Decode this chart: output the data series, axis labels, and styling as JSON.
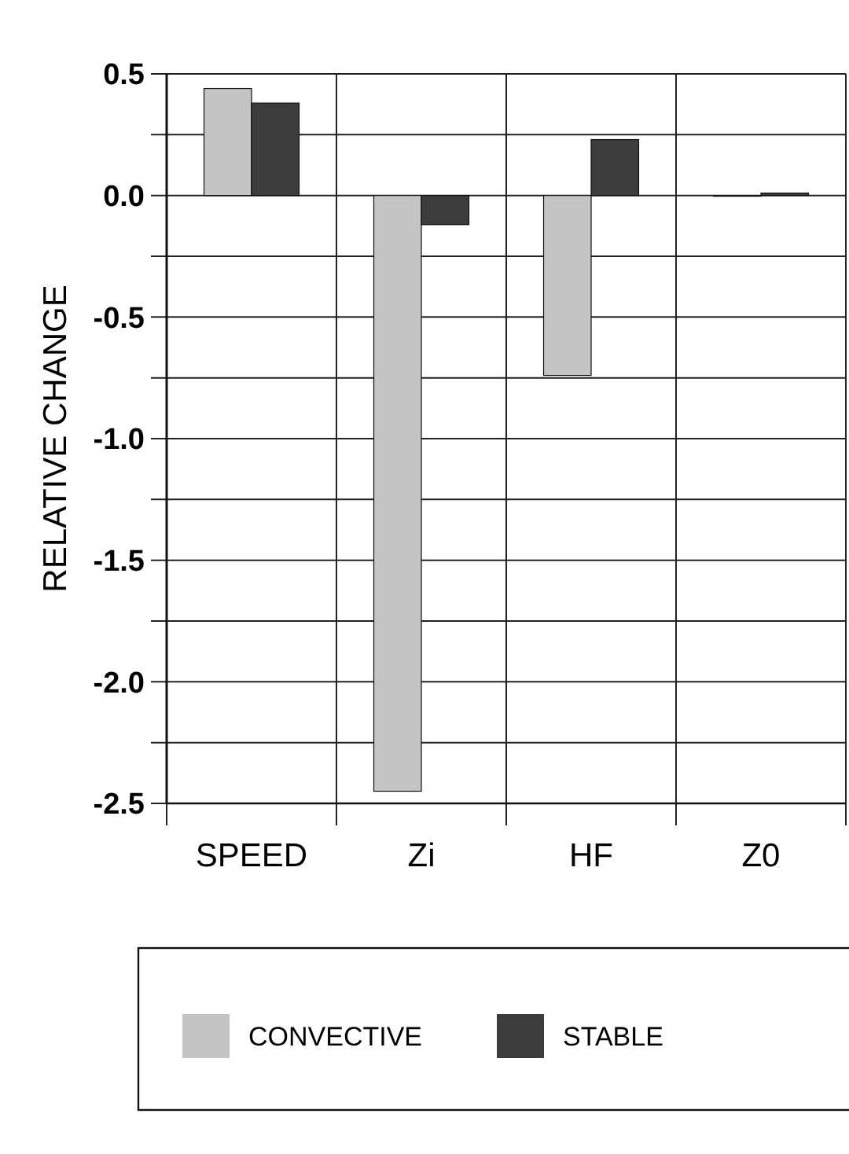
{
  "chart_data": {
    "type": "bar",
    "ylabel": "RELATIVE CHANGE",
    "categories": [
      "SPEED",
      "Zi",
      "HF",
      "Z0"
    ],
    "series": [
      {
        "name": "CONVECTIVE",
        "color": "#c4c4c4",
        "values": [
          0.44,
          -2.45,
          -0.74,
          0.0
        ]
      },
      {
        "name": "STABLE",
        "color": "#3c3c3c",
        "values": [
          0.38,
          -0.12,
          0.23,
          0.01
        ]
      }
    ],
    "ylim": [
      -2.5,
      0.5
    ],
    "yticks": [
      -2.5,
      {
        "value": -2.25,
        "label": null
      },
      {
        "value": -2.0,
        "label": "-2.0"
      },
      {
        "value": -1.75,
        "label": null
      },
      -1.5,
      {
        "value": -1.25,
        "label": null
      },
      {
        "value": -1.0,
        "label": "-1.0"
      },
      {
        "value": -0.75,
        "label": null
      },
      -0.5,
      {
        "value": -0.25,
        "label": null
      },
      {
        "value": 0.0,
        "label": "0.0"
      },
      {
        "value": 0.25,
        "label": null
      },
      0.5
    ],
    "grid": true,
    "legend": "bottom"
  }
}
